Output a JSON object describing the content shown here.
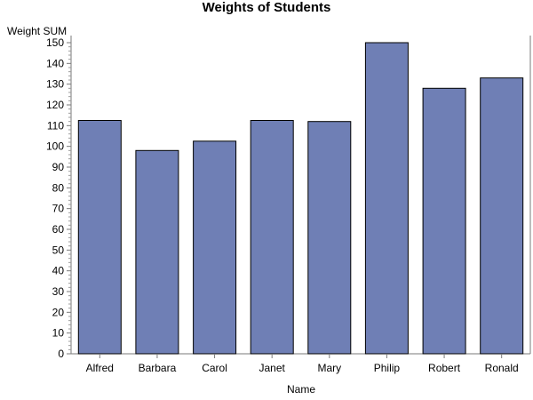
{
  "chart_data": {
    "type": "bar",
    "title": "Weights of Students",
    "ylabel": "Weight SUM",
    "xlabel": "Name",
    "categories": [
      "Alfred",
      "Barbara",
      "Carol",
      "Janet",
      "Mary",
      "Philip",
      "Robert",
      "Ronald"
    ],
    "values": [
      112.5,
      98,
      102.5,
      112.5,
      112,
      150,
      128,
      133
    ],
    "ylim": [
      0,
      150
    ],
    "yticks": [
      0,
      10,
      20,
      30,
      40,
      50,
      60,
      70,
      80,
      90,
      100,
      110,
      120,
      130,
      140,
      150
    ],
    "bar_color": "#6f7fb5",
    "grid": false
  }
}
